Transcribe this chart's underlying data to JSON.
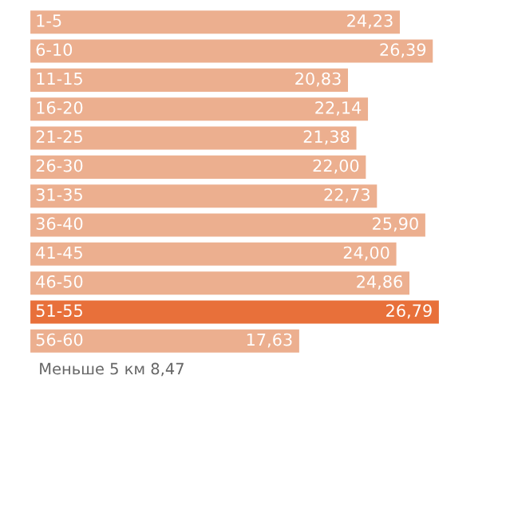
{
  "chart_data": {
    "type": "bar",
    "orientation": "horizontal",
    "categories": [
      "1-5",
      "6-10",
      "11-15",
      "16-20",
      "21-25",
      "26-30",
      "31-35",
      "36-40",
      "41-45",
      "46-50",
      "51-55",
      "56-60"
    ],
    "values": [
      24.23,
      26.39,
      20.83,
      22.14,
      21.38,
      22.0,
      22.73,
      25.9,
      24.0,
      24.86,
      26.79,
      17.63
    ],
    "value_labels": [
      "24,23",
      "26,39",
      "20,83",
      "22,14",
      "21,38",
      "22,00",
      "22,73",
      "25,90",
      "24,00",
      "24,86",
      "26,79",
      "17,63"
    ],
    "colors": [
      "#ecaf8f",
      "#ecaf8f",
      "#ecaf8f",
      "#ecaf8f",
      "#ecaf8f",
      "#ecaf8f",
      "#ecaf8f",
      "#ecaf8f",
      "#ecaf8f",
      "#ecaf8f",
      "#e8703a",
      "#ecaf8f"
    ],
    "annotations": [
      "Меньше 5 км 8,47"
    ]
  }
}
